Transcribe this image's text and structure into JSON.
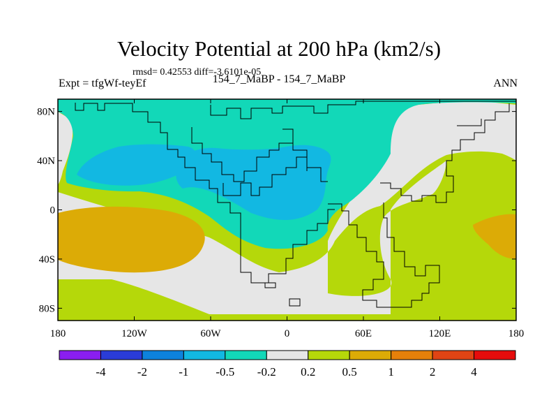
{
  "header": {
    "title": "Velocity Potential at 200 hPa (km2/s)",
    "stats": "rmsd= 0.42553 diff=-3.6101e-05",
    "expt": "Expt = tfgWf-teyEf",
    "case": "154_7_MaBP - 154_7_MaBP",
    "season": "ANN"
  },
  "chart_data": {
    "type": "heatmap",
    "title": "Velocity Potential at 200 hPa (km2/s)",
    "projection": "cylindrical-equidistant",
    "xlim": [
      -180,
      180
    ],
    "ylim": [
      -90,
      90
    ],
    "x_ticks": [
      {
        "value": -180,
        "label": "180"
      },
      {
        "value": -120,
        "label": "120W"
      },
      {
        "value": -60,
        "label": "60W"
      },
      {
        "value": 0,
        "label": "0"
      },
      {
        "value": 60,
        "label": "60E"
      },
      {
        "value": 120,
        "label": "120E"
      },
      {
        "value": 180,
        "label": "180"
      }
    ],
    "y_ticks": [
      {
        "value": 80,
        "label": "80N"
      },
      {
        "value": 40,
        "label": "40N"
      },
      {
        "value": 0,
        "label": "0"
      },
      {
        "value": -40,
        "label": "40S"
      },
      {
        "value": -80,
        "label": "80S"
      }
    ],
    "colorbar": {
      "levels": [
        "-4",
        "-2",
        "-1",
        "-0.5",
        "-0.2",
        "0.2",
        "0.5",
        "1",
        "2",
        "4"
      ],
      "colors": [
        "#8a1ef0",
        "#2a3cd8",
        "#0d82dc",
        "#12b8e2",
        "#12d8b8",
        "#e6e6e6",
        "#b5d80a",
        "#dcab06",
        "#e6800a",
        "#e04414",
        "#e60c0c"
      ]
    },
    "regions": [
      {
        "name": "background",
        "level_range": "0.2 to 0.5",
        "color": "#b5d80a"
      },
      {
        "name": "neutral-africa-atlantic",
        "level_range": "-0.2 to 0.2",
        "color": "#e6e6e6"
      },
      {
        "name": "neutral-north-pacific-west",
        "level_range": "-0.2 to 0.2",
        "color": "#e6e6e6"
      },
      {
        "name": "neutral-north-pacific-east",
        "level_range": "-0.2 to 0.2",
        "color": "#e6e6e6"
      },
      {
        "name": "negative-north-band",
        "level_range": "-0.5 to -0.2",
        "color": "#12d8b8"
      },
      {
        "name": "negative-north-america",
        "level_range": "-1 to -0.5",
        "color": "#12b8e2"
      },
      {
        "name": "negative-europe-atlantic",
        "level_range": "-1 to -0.5",
        "color": "#12b8e2"
      },
      {
        "name": "positive-south-pacific",
        "level_range": "0.5 to 1",
        "color": "#dcab06"
      },
      {
        "name": "positive-south-indian",
        "level_range": "0.5 to 1",
        "color": "#dcab06"
      }
    ]
  }
}
